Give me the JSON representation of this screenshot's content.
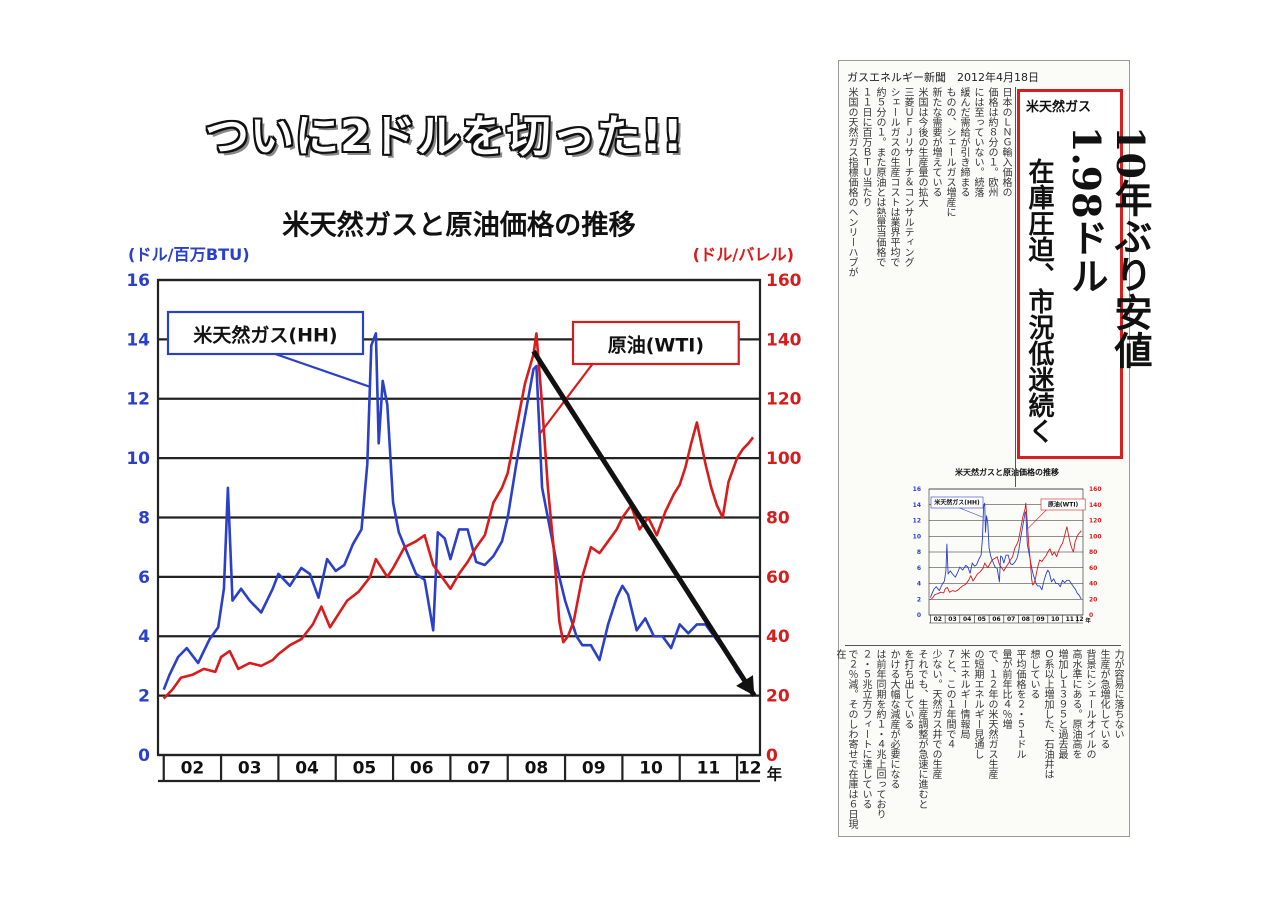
{
  "slide_title": "ついに2ドルを切った!!",
  "chart_data": {
    "type": "line",
    "title": "米天然ガスと原油価格の推移",
    "left_axis_label": "(ドル/百万BTU)",
    "right_axis_label": "(ドル/バレル)",
    "x_unit_label": "年",
    "categories": [
      "02",
      "03",
      "04",
      "05",
      "06",
      "07",
      "08",
      "09",
      "10",
      "11",
      "12"
    ],
    "left_ticks": [
      "0",
      "2",
      "4",
      "6",
      "8",
      "10",
      "12",
      "14",
      "16"
    ],
    "right_ticks": [
      "0",
      "20",
      "40",
      "60",
      "80",
      "100",
      "120",
      "140",
      "160"
    ],
    "ylim_left": [
      0,
      16
    ],
    "ylim_right": [
      0,
      160
    ],
    "xlim": [
      2001.9,
      2012.4
    ],
    "series": [
      {
        "name": "米天然ガス(HH)",
        "axis": "left",
        "color": "#2b40c8",
        "x": [
          2002.0,
          2002.1,
          2002.25,
          2002.4,
          2002.6,
          2002.8,
          2002.95,
          2003.05,
          2003.12,
          2003.2,
          2003.35,
          2003.5,
          2003.7,
          2003.9,
          2004.0,
          2004.2,
          2004.4,
          2004.55,
          2004.7,
          2004.85,
          2005.0,
          2005.15,
          2005.3,
          2005.45,
          2005.55,
          2005.62,
          2005.7,
          2005.75,
          2005.82,
          2005.9,
          2006.0,
          2006.1,
          2006.25,
          2006.4,
          2006.55,
          2006.7,
          2006.78,
          2006.9,
          2007.0,
          2007.15,
          2007.3,
          2007.45,
          2007.6,
          2007.75,
          2007.9,
          2008.0,
          2008.15,
          2008.3,
          2008.45,
          2008.5,
          2008.6,
          2008.75,
          2008.9,
          2009.0,
          2009.1,
          2009.2,
          2009.3,
          2009.45,
          2009.6,
          2009.75,
          2009.9,
          2010.0,
          2010.1,
          2010.25,
          2010.4,
          2010.55,
          2010.7,
          2010.85,
          2011.0,
          2011.15,
          2011.3,
          2011.45,
          2011.6,
          2011.75,
          2011.9,
          2012.0,
          2012.1,
          2012.2,
          2012.28
        ],
        "y": [
          2.2,
          2.7,
          3.3,
          3.6,
          3.1,
          3.9,
          4.3,
          5.6,
          9.0,
          5.2,
          5.6,
          5.2,
          4.8,
          5.6,
          6.1,
          5.7,
          6.3,
          6.1,
          5.3,
          6.6,
          6.2,
          6.4,
          7.1,
          7.6,
          9.8,
          13.8,
          14.2,
          10.5,
          12.6,
          11.8,
          8.5,
          7.5,
          6.8,
          6.1,
          5.9,
          4.2,
          7.5,
          7.3,
          6.6,
          7.6,
          7.6,
          6.5,
          6.4,
          6.7,
          7.2,
          8.0,
          9.8,
          11.4,
          13.0,
          13.1,
          9.0,
          7.5,
          6.0,
          5.2,
          4.6,
          4.0,
          3.7,
          3.7,
          3.2,
          4.4,
          5.3,
          5.7,
          5.4,
          4.2,
          4.6,
          4.0,
          4.0,
          3.6,
          4.4,
          4.1,
          4.4,
          4.4,
          4.0,
          3.6,
          3.2,
          2.8,
          2.6,
          2.3,
          2.0
        ]
      },
      {
        "name": "原油(WTI)",
        "axis": "right",
        "color": "#d81c1c",
        "x": [
          2002.0,
          2002.15,
          2002.3,
          2002.5,
          2002.7,
          2002.9,
          2003.0,
          2003.15,
          2003.3,
          2003.5,
          2003.7,
          2003.9,
          2004.0,
          2004.2,
          2004.4,
          2004.6,
          2004.75,
          2004.9,
          2005.0,
          2005.2,
          2005.4,
          2005.6,
          2005.7,
          2005.9,
          2006.0,
          2006.2,
          2006.4,
          2006.55,
          2006.7,
          2006.85,
          2007.0,
          2007.15,
          2007.3,
          2007.45,
          2007.6,
          2007.75,
          2007.9,
          2008.0,
          2008.15,
          2008.3,
          2008.45,
          2008.5,
          2008.6,
          2008.7,
          2008.8,
          2008.9,
          2008.97,
          2009.05,
          2009.15,
          2009.3,
          2009.45,
          2009.6,
          2009.75,
          2009.9,
          2010.0,
          2010.15,
          2010.3,
          2010.45,
          2010.6,
          2010.75,
          2010.9,
          2011.0,
          2011.1,
          2011.2,
          2011.3,
          2011.45,
          2011.55,
          2011.65,
          2011.75,
          2011.85,
          2012.0,
          2012.1,
          2012.2,
          2012.28
        ],
        "y": [
          19,
          22,
          26,
          27,
          29,
          28,
          33,
          35,
          29,
          31,
          30,
          32,
          34,
          37,
          39,
          44,
          50,
          43,
          46,
          52,
          55,
          60,
          66,
          60,
          63,
          70,
          72,
          74,
          64,
          60,
          56,
          61,
          65,
          70,
          74,
          85,
          90,
          95,
          110,
          125,
          135,
          142,
          118,
          90,
          70,
          45,
          38,
          40,
          45,
          60,
          70,
          68,
          72,
          76,
          80,
          84,
          76,
          80,
          74,
          82,
          88,
          91,
          97,
          105,
          112,
          98,
          90,
          84,
          80,
          92,
          100,
          103,
          105,
          107
        ]
      }
    ],
    "annotations": [
      {
        "label": "米天然ガス(HH)",
        "color": "#2b40c8"
      },
      {
        "label": "原油(WTI)",
        "color": "#d81c1c"
      }
    ],
    "trend_arrow": {
      "from": [
        2008.45,
        13.6
      ],
      "to": [
        2012.3,
        2.0
      ],
      "color": "#111111"
    },
    "grid": true
  },
  "clipping": {
    "header": "ガスエネルギー新聞　2012年4月18日",
    "headline_tag": "米天然ガス",
    "headline_main": "10年ぶり安値1.98ドル",
    "headline_sub": "在庫圧迫、市況低迷続く",
    "mini_chart_title": "米天然ガスと原油価格の推移",
    "mini_legend_gas": "米天然ガス(HH)",
    "mini_legend_oil": "原油(WTI)"
  }
}
